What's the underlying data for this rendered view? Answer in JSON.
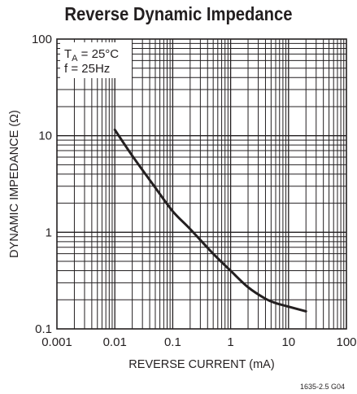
{
  "chart_data": {
    "type": "line",
    "title": "Reverse Dynamic Impedance",
    "xlabel": "REVERSE CURRENT (mA)",
    "ylabel": "DYNAMIC IMPEDANCE (Ω)",
    "xscale": "log",
    "yscale": "log",
    "xlim": [
      0.001,
      100
    ],
    "ylim": [
      0.1,
      100
    ],
    "grid": true,
    "x_ticks": [
      0.001,
      0.01,
      0.1,
      1,
      10,
      100
    ],
    "x_tick_labels": [
      "0.001",
      "0.01",
      "0.1",
      "1",
      "10",
      "100"
    ],
    "y_ticks": [
      0.1,
      1,
      10,
      100
    ],
    "y_tick_labels": [
      "0.1",
      "1",
      "10",
      "100"
    ],
    "annotation": {
      "line1_main": "T",
      "line1_sub": "A",
      "line1_rest": " = 25°C",
      "line2": "f = 25Hz"
    },
    "series": [
      {
        "color": "#231f20",
        "x": [
          0.01,
          0.02,
          0.05,
          0.1,
          0.2,
          0.5,
          1,
          2,
          4,
          6,
          10,
          20
        ],
        "y": [
          11.5,
          6.2,
          2.9,
          1.65,
          1.08,
          0.6,
          0.4,
          0.27,
          0.205,
          0.185,
          0.17,
          0.152
        ]
      }
    ]
  },
  "figure_id": "1635-2.5 G04"
}
